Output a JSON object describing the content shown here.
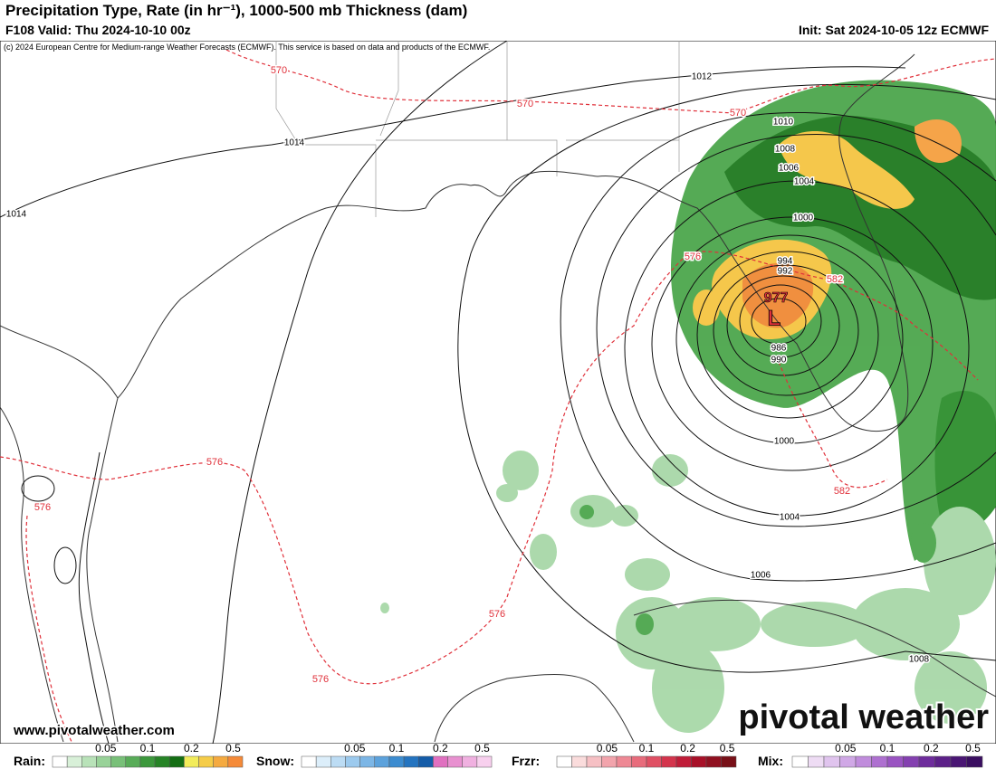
{
  "header": {
    "title": "Precipitation Type, Rate (in hr⁻¹), 1000-500 mb Thickness (dam)",
    "valid": "F108 Valid: Thu 2024-10-10 00z",
    "init": "Init: Sat 2024-10-05 12z ECMWF",
    "credit": "(c) 2024 European Centre for Medium-range Weather Forecasts (ECMWF). This service is based on data and products of the ECMWF."
  },
  "map": {
    "low": {
      "pressure": "977",
      "symbol": "L"
    },
    "pressure_labels": [
      "1012",
      "1014",
      "1014",
      "1010",
      "1008",
      "1006",
      "1004",
      "1000",
      "994",
      "992",
      "986",
      "990",
      "1000",
      "1004",
      "1006",
      "1008"
    ],
    "thickness_labels": [
      "570",
      "570",
      "570",
      "576",
      "582",
      "576",
      "576",
      "576",
      "576",
      "582"
    ]
  },
  "footer": {
    "website": "www.pivotalweather.com",
    "brand": "pivotal weather"
  },
  "legend": [
    {
      "name": "Rain:",
      "ticks": [
        "0.05",
        "0.1",
        "0.2",
        "0.5"
      ],
      "colors": [
        "#ffffff",
        "#d8f0d8",
        "#b8e2b8",
        "#98d298",
        "#78c078",
        "#58ac58",
        "#3c983c",
        "#268426",
        "#146e14",
        "#f2ec5a",
        "#f5cc48",
        "#f5aa40",
        "#f58a38"
      ]
    },
    {
      "name": "Snow:",
      "ticks": [
        "0.05",
        "0.1",
        "0.2",
        "0.5"
      ],
      "colors": [
        "#ffffff",
        "#dceefa",
        "#bcdcf4",
        "#9ccaee",
        "#7cb6e6",
        "#5ca2dc",
        "#3c8cd0",
        "#2474c0",
        "#145ca8",
        "#e070c0",
        "#e890d0",
        "#f0b0e0",
        "#f8d0ee"
      ]
    },
    {
      "name": "Frzr:",
      "ticks": [
        "0.05",
        "0.1",
        "0.2",
        "0.5"
      ],
      "colors": [
        "#ffffff",
        "#fadcdc",
        "#f6c0c4",
        "#f2a4ac",
        "#ee8894",
        "#e86c7c",
        "#e05064",
        "#d4344c",
        "#c01c38",
        "#a81028",
        "#901020",
        "#781018"
      ]
    },
    {
      "name": "Mix:",
      "ticks": [
        "0.05",
        "0.1",
        "0.2",
        "0.5"
      ],
      "colors": [
        "#ffffff",
        "#eedcf4",
        "#e0c4ee",
        "#d0a8e6",
        "#c08cdc",
        "#ae70d0",
        "#9a54c2",
        "#8440b0",
        "#6e2c9c",
        "#5c2088",
        "#4a1674",
        "#3a0e60"
      ]
    }
  ]
}
